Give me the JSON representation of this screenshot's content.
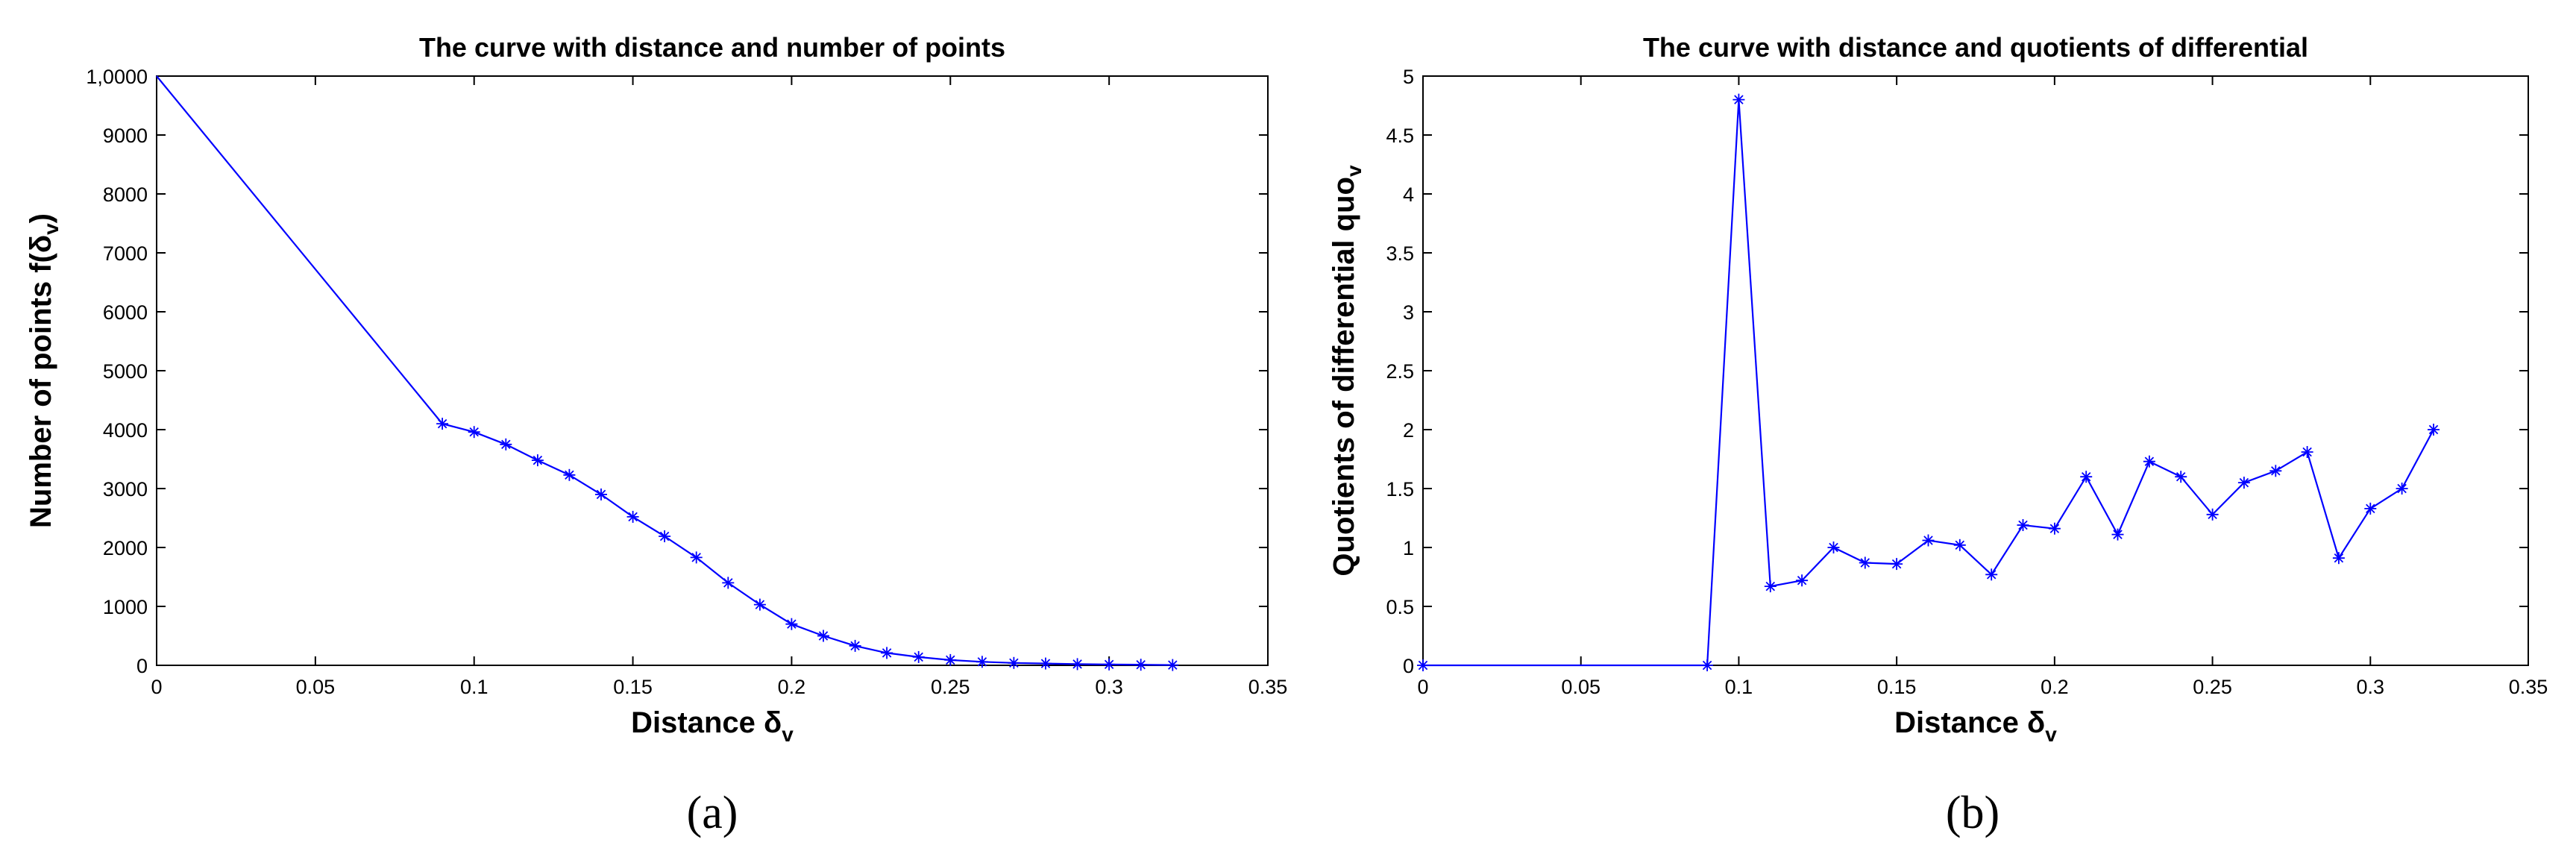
{
  "chart_data": [
    {
      "type": "line",
      "title": "The curve with distance and number of points",
      "xlabel": "Distance δ",
      "xlabel_subscript": "v",
      "ylabel": "Number of points f(δ",
      "ylabel_subscript": "v",
      "ylabel_suffix": ")",
      "xlim": [
        0,
        0.35
      ],
      "ylim": [
        0,
        10000
      ],
      "xticks": [
        0,
        0.05,
        0.1,
        0.15,
        0.2,
        0.25,
        0.3,
        0.35
      ],
      "xtick_labels": [
        "0",
        "0.05",
        "0.1",
        "0.15",
        "0.2",
        "0.25",
        "0.3",
        "0.35"
      ],
      "yticks": [
        0,
        1000,
        2000,
        3000,
        4000,
        5000,
        6000,
        7000,
        8000,
        9000,
        10000
      ],
      "ytick_labels": [
        "0",
        "1000",
        "2000",
        "3000",
        "4000",
        "5000",
        "6000",
        "7000",
        "8000",
        "9000",
        "1,0000"
      ],
      "grid": false,
      "line_color": "#0000ff",
      "marker": "asterisk",
      "series": [
        {
          "x": [
            0,
            0.09,
            0.1,
            0.11,
            0.12,
            0.13,
            0.14,
            0.15,
            0.16,
            0.17,
            0.18,
            0.19,
            0.2,
            0.21,
            0.22,
            0.23,
            0.24,
            0.25,
            0.26,
            0.27,
            0.28,
            0.29,
            0.3,
            0.31,
            0.32
          ],
          "y": [
            10000,
            4100,
            3960,
            3750,
            3480,
            3230,
            2900,
            2520,
            2190,
            1830,
            1400,
            1030,
            700,
            500,
            330,
            210,
            140,
            90,
            60,
            40,
            30,
            20,
            15,
            10,
            5
          ],
          "marked": [
            false,
            true,
            true,
            true,
            true,
            true,
            true,
            true,
            true,
            true,
            true,
            true,
            true,
            true,
            true,
            true,
            true,
            true,
            true,
            true,
            true,
            true,
            true,
            true,
            true
          ]
        }
      ],
      "caption": "(a)"
    },
    {
      "type": "line",
      "title": "The curve with distance and quotients of differential",
      "xlabel": "Distance δ",
      "xlabel_subscript": "v",
      "ylabel": "Quotients of differential quo",
      "ylabel_subscript": "v",
      "ylabel_suffix": "",
      "xlim": [
        0,
        0.35
      ],
      "ylim": [
        0,
        5
      ],
      "xticks": [
        0,
        0.05,
        0.1,
        0.15,
        0.2,
        0.25,
        0.3,
        0.35
      ],
      "xtick_labels": [
        "0",
        "0.05",
        "0.1",
        "0.15",
        "0.2",
        "0.25",
        "0.3",
        "0.35"
      ],
      "yticks": [
        0,
        0.5,
        1,
        1.5,
        2,
        2.5,
        3,
        3.5,
        4,
        4.5,
        5
      ],
      "ytick_labels": [
        "0",
        "0.5",
        "1",
        "1.5",
        "2",
        "2.5",
        "3",
        "3.5",
        "4",
        "4.5",
        "5"
      ],
      "grid": false,
      "line_color": "#0000ff",
      "marker": "asterisk",
      "series": [
        {
          "x": [
            0,
            0.09,
            0.1,
            0.11,
            0.12,
            0.13,
            0.14,
            0.15,
            0.16,
            0.17,
            0.18,
            0.19,
            0.2,
            0.21,
            0.22,
            0.23,
            0.24,
            0.25,
            0.26,
            0.27,
            0.28,
            0.29,
            0.3,
            0.31,
            0.32
          ],
          "y": [
            0,
            0,
            4.8,
            0.67,
            0.72,
            1.0,
            0.87,
            0.86,
            1.06,
            1.02,
            0.77,
            1.19,
            1.16,
            1.6,
            1.11,
            1.73,
            1.6,
            1.28,
            1.55,
            1.65,
            1.81,
            0.91,
            1.33,
            1.5,
            2.0
          ],
          "marked": [
            true,
            true,
            true,
            true,
            true,
            true,
            true,
            true,
            true,
            true,
            true,
            true,
            true,
            true,
            true,
            true,
            true,
            true,
            true,
            true,
            true,
            true,
            true,
            true,
            true
          ]
        }
      ],
      "caption": "(b)"
    }
  ]
}
